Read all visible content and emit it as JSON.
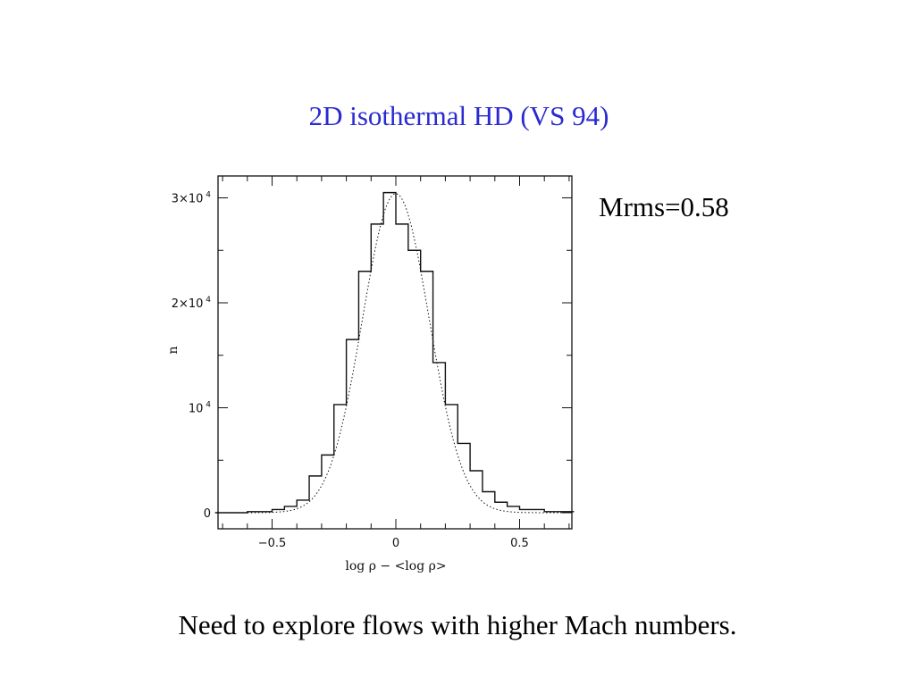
{
  "slide": {
    "title": "2D isothermal HD (VS 94)",
    "side_note": "Mrms=0.58",
    "caption": "Need to explore flows with higher Mach numbers."
  },
  "colors": {
    "title": "#2a2ad0",
    "text": "#000000",
    "axes": "#111111"
  },
  "chart_data": {
    "type": "bar",
    "title": "",
    "xlabel": "log ρ − <log ρ>",
    "ylabel": "n",
    "xlim": [
      -0.73,
      0.72
    ],
    "ylim": [
      0,
      3.3
    ],
    "y_unit_note": "counts in units of 10^4",
    "x_ticks": [
      {
        "value": -0.5,
        "label": "−0.5"
      },
      {
        "value": 0,
        "label": "0"
      },
      {
        "value": 0.5,
        "label": "0.5"
      }
    ],
    "y_ticks": [
      {
        "value": 0,
        "label": "0",
        "exp": ""
      },
      {
        "value": 1,
        "label": "10",
        "exp": "4"
      },
      {
        "value": 2,
        "label": "2×10",
        "exp": "4"
      },
      {
        "value": 3,
        "label": "3×10",
        "exp": "4"
      }
    ],
    "series": [
      {
        "style": "histogram",
        "bin_edges": [
          -0.73,
          -0.6,
          -0.5,
          -0.45,
          -0.4,
          -0.35,
          -0.3,
          -0.25,
          -0.2,
          -0.15,
          -0.1,
          -0.05,
          0,
          0.05,
          0.1,
          0.15,
          0.2,
          0.25,
          0.3,
          0.35,
          0.4,
          0.45,
          0.5,
          0.6,
          0.72
        ],
        "values": [
          0.0,
          0.01,
          0.03,
          0.06,
          0.12,
          0.35,
          0.55,
          1.03,
          1.65,
          2.3,
          2.75,
          3.05,
          2.75,
          2.5,
          2.3,
          1.43,
          1.03,
          0.66,
          0.4,
          0.2,
          0.1,
          0.06,
          0.03,
          0.01
        ]
      },
      {
        "style": "gaussian-fit",
        "amplitude": 3.04,
        "mean": 0.0,
        "sigma": 0.135
      }
    ]
  }
}
